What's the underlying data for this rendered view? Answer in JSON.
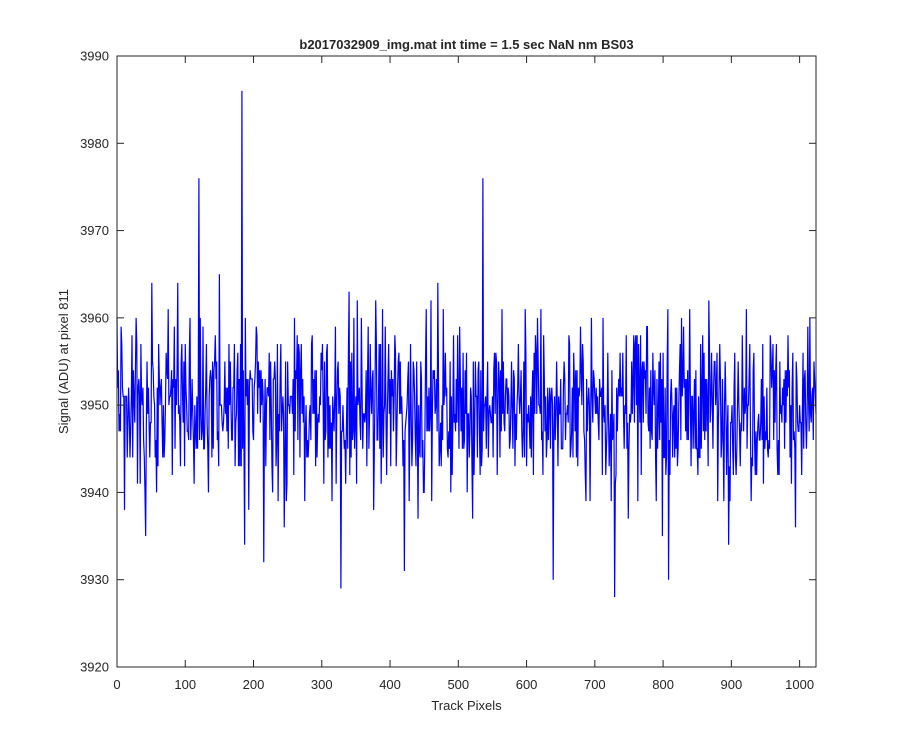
{
  "chart_data": {
    "type": "line",
    "title": "b2017032909_img.mat int time = 1.5 sec  NaN nm BS03",
    "xlabel": "Track Pixels",
    "ylabel": "Signal (ADU) at pixel 811",
    "xlim": [
      0,
      1024
    ],
    "ylim": [
      3920,
      3990
    ],
    "xticks": [
      0,
      100,
      200,
      300,
      400,
      500,
      600,
      700,
      800,
      900,
      1000
    ],
    "yticks": [
      3920,
      3930,
      3940,
      3950,
      3960,
      3970,
      3980,
      3990
    ],
    "grid": false,
    "legend": "none",
    "series": [
      {
        "color": "#0000ff",
        "x": [
          0,
          1024
        ],
        "notable_points": [
          {
            "x": 120,
            "y": 3976
          },
          {
            "x": 183,
            "y": 3986
          },
          {
            "x": 215,
            "y": 3932
          },
          {
            "x": 328,
            "y": 3929
          },
          {
            "x": 421,
            "y": 3931
          },
          {
            "x": 536,
            "y": 3976
          },
          {
            "x": 639,
            "y": 3930
          },
          {
            "x": 729,
            "y": 3928
          },
          {
            "x": 808,
            "y": 3930
          }
        ],
        "mean": 3950,
        "typical_range": [
          3935,
          3967
        ]
      }
    ]
  }
}
